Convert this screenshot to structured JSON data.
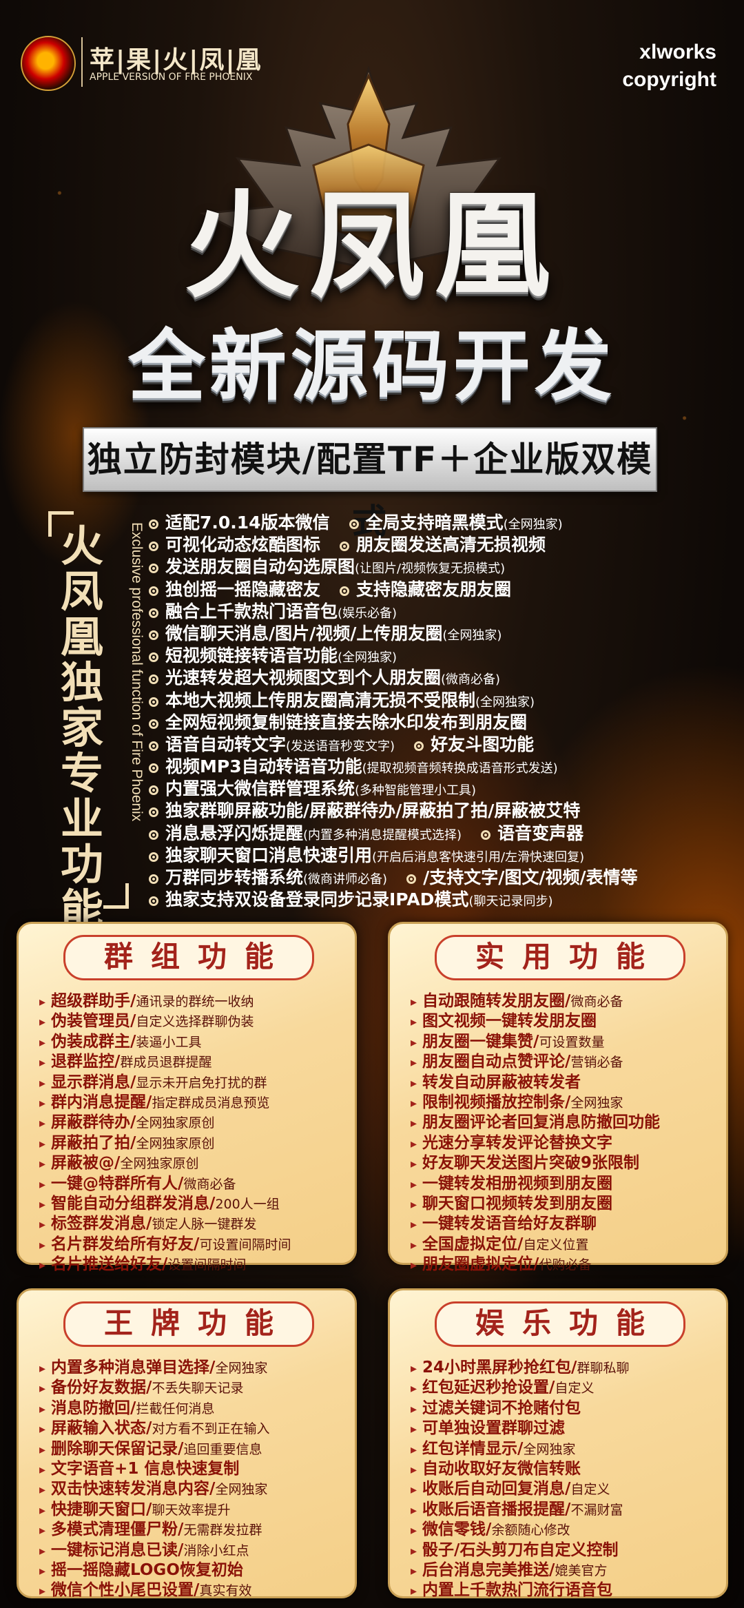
{
  "header": {
    "logo_cn": "苹|果|火|凤|凰",
    "logo_en": "APPLE VERSION OF FIRE PHOENIX",
    "brand_line1": "xlworks",
    "brand_line2": "copyright"
  },
  "hero": {
    "title": "火凤凰",
    "subtitle": "全新源码开发",
    "banner": "独立防封模块/配置TF＋企业版双模式"
  },
  "exclusive": {
    "title": "火凤凰独家专业功能",
    "title_en": "Exclusive professional function of Fire Phoenix",
    "lines": [
      [
        {
          "t": "适配7.0.14版本微信",
          "n": ""
        },
        {
          "t": "全局支持暗黑模式",
          "n": "(全网独家)"
        }
      ],
      [
        {
          "t": "可视化动态炫酷图标",
          "n": ""
        },
        {
          "t": "朋友圈发送高清无损视频",
          "n": ""
        }
      ],
      [
        {
          "t": "发送朋友圈自动勾选原图",
          "n": "(让图片/视频恢复无损模式)"
        }
      ],
      [
        {
          "t": "独创摇一摇隐藏密友",
          "n": ""
        },
        {
          "t": "支持隐藏密友朋友圈",
          "n": ""
        }
      ],
      [
        {
          "t": "融合上千款热门语音包",
          "n": "(娱乐必备)"
        }
      ],
      [
        {
          "t": "微信聊天消息/图片/视频/上传朋友圈",
          "n": "(全网独家)"
        }
      ],
      [
        {
          "t": "短视频链接转语音功能",
          "n": "(全网独家)"
        }
      ],
      [
        {
          "t": "光速转发超大视频图文到个人朋友圈",
          "n": "(微商必备)"
        }
      ],
      [
        {
          "t": "本地大视频上传朋友圈高清无损不受限制",
          "n": "(全网独家)"
        }
      ],
      [
        {
          "t": "全网短视频复制链接直接去除水印发布到朋友圈",
          "n": ""
        }
      ],
      [
        {
          "t": "语音自动转文字",
          "n": "(发送语音秒变文字)"
        },
        {
          "t": "好友斗图功能",
          "n": ""
        }
      ],
      [
        {
          "t": "视频MP3自动转语音功能",
          "n": "(提取视频音频转换成语音形式发送)"
        }
      ],
      [
        {
          "t": "内置强大微信群管理系统",
          "n": "(多种智能管理小工具)"
        }
      ],
      [
        {
          "t": "独家群聊屏蔽功能/屏蔽群待办/屏蔽拍了拍/屏蔽被艾特",
          "n": ""
        }
      ],
      [
        {
          "t": "消息悬浮闪烁提醒",
          "n": "(内置多种消息提醒模式选择)"
        },
        {
          "t": "语音变声器",
          "n": ""
        }
      ],
      [
        {
          "t": "独家聊天窗口消息快速引用",
          "n": "(开启后消息客快速引用/左滑快速回复)"
        }
      ],
      [
        {
          "t": "万群同步转播系统",
          "n": "(微商讲师必备)"
        },
        {
          "t": "/支持文字/图文/视频/表情等",
          "n": ""
        }
      ],
      [
        {
          "t": "独家支持双设备登录同步记录IPAD模式",
          "n": "(聊天记录同步)"
        }
      ]
    ]
  },
  "panels": {
    "group": {
      "title": "群组功能",
      "items": [
        {
          "t": "超级群助手/",
          "d": "通讯录的群统一收纳"
        },
        {
          "t": "伪装管理员/",
          "d": "自定义选择群聊伪装"
        },
        {
          "t": "伪装成群主/",
          "d": "装逼小工具"
        },
        {
          "t": "退群监控/",
          "d": "群成员退群提醒"
        },
        {
          "t": "显示群消息/",
          "d": "显示未开启免打扰的群"
        },
        {
          "t": "群内消息提醒/",
          "d": "指定群成员消息预览"
        },
        {
          "t": "屏蔽群待办/",
          "d": "全网独家原创"
        },
        {
          "t": "屏蔽拍了拍/",
          "d": "全网独家原创"
        },
        {
          "t": "屏蔽被@/",
          "d": "全网独家原创"
        },
        {
          "t": "一键@特群所有人/",
          "d": "微商必备"
        },
        {
          "t": "智能自动分组群发消息/",
          "d": "200人一组"
        },
        {
          "t": "标签群发消息/",
          "d": "锁定人脉一键群发"
        },
        {
          "t": "名片群发给所有好友/",
          "d": "可设置间隔时间"
        },
        {
          "t": "名片推送给好友/",
          "d": "设置间隔时间"
        }
      ]
    },
    "utility": {
      "title": "实用功能",
      "items": [
        {
          "t": "自动跟随转发朋友圈/",
          "d": "微商必备"
        },
        {
          "t": "图文视频一键转发朋友圈",
          "d": ""
        },
        {
          "t": "朋友圈一键集赞/",
          "d": "可设置数量"
        },
        {
          "t": "朋友圈自动点赞评论/",
          "d": "营销必备"
        },
        {
          "t": "转发自动屏蔽被转发者",
          "d": ""
        },
        {
          "t": "限制视频播放控制条/",
          "d": "全网独家"
        },
        {
          "t": "朋友圈评论者回复消息防撤回功能",
          "d": ""
        },
        {
          "t": "光速分享转发评论替换文字",
          "d": ""
        },
        {
          "t": "好友聊天发送图片突破9张限制",
          "d": ""
        },
        {
          "t": "一键转发相册视频到朋友圈",
          "d": ""
        },
        {
          "t": "聊天窗口视频转发到朋友圈",
          "d": ""
        },
        {
          "t": "一键转发语音给好友群聊",
          "d": ""
        },
        {
          "t": "全国虚拟定位/",
          "d": "自定义位置"
        },
        {
          "t": "朋友圈虚拟定位/",
          "d": "代购必备"
        }
      ]
    },
    "king": {
      "title": "王牌功能",
      "items": [
        {
          "t": "内置多种消息弹目选择/",
          "d": "全网独家"
        },
        {
          "t": "备份好友数据/",
          "d": "不丢失聊天记录"
        },
        {
          "t": "消息防撤回/",
          "d": "拦截任何消息"
        },
        {
          "t": "屏蔽输入状态/",
          "d": "对方看不到正在输入"
        },
        {
          "t": "删除聊天保留记录/",
          "d": "追回重要信息"
        },
        {
          "t": "文字语音+1 信息快速复制",
          "d": ""
        },
        {
          "t": "双击快速转发消息内容/",
          "d": "全网独家"
        },
        {
          "t": "快捷聊天窗口/",
          "d": "聊天效率提升"
        },
        {
          "t": "多模式清理僵尸粉/",
          "d": "无需群发拉群"
        },
        {
          "t": "一键标记消息已读/",
          "d": "消除小红点"
        },
        {
          "t": "摇一摇隐藏LOGO恢复初始",
          "d": ""
        },
        {
          "t": "微信个性小尾巴设置/",
          "d": "真实有效"
        }
      ]
    },
    "fun": {
      "title": "娱乐功能",
      "items": [
        {
          "t": "24小时黑屏秒抢红包/",
          "d": "群聊私聊"
        },
        {
          "t": "红包延迟秒抢设置/",
          "d": "自定义"
        },
        {
          "t": "过滤关键词不抢赌付包",
          "d": ""
        },
        {
          "t": "可单独设置群聊过滤",
          "d": ""
        },
        {
          "t": "红包详情显示/",
          "d": "全网独家"
        },
        {
          "t": "自动收取好友微信转账",
          "d": ""
        },
        {
          "t": "收账后自动回复消息/",
          "d": "自定义"
        },
        {
          "t": "收账后语音播报提醒/",
          "d": "不漏财富"
        },
        {
          "t": "微信零钱/",
          "d": "余额随心修改"
        },
        {
          "t": "骰子/石头剪刀布自定义控制",
          "d": ""
        },
        {
          "t": "后台消息完美推送/",
          "d": "媲美官方"
        },
        {
          "t": "内置上千款热门流行语音包",
          "d": ""
        }
      ]
    }
  }
}
